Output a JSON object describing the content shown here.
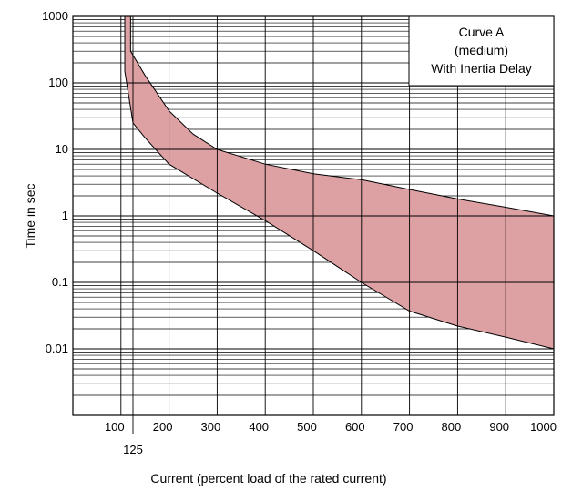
{
  "chart_data": {
    "type": "area",
    "xlabel": "Current (percent load of the rated current)",
    "ylabel": "Time in sec",
    "x_scale": "linear",
    "y_scale": "log",
    "xlim": [
      0,
      1000
    ],
    "ylim": [
      0.001,
      1000
    ],
    "x_ticks": [
      100,
      200,
      300,
      400,
      500,
      600,
      700,
      800,
      900,
      1000
    ],
    "x_extra_tick": 125,
    "y_ticks": [
      {
        "value": 0.01,
        "label": "0.01"
      },
      {
        "value": 0.1,
        "label": "0.1"
      },
      {
        "value": 1,
        "label": "1"
      },
      {
        "value": 10,
        "label": "10"
      },
      {
        "value": 100,
        "label": "100"
      },
      {
        "value": 1000,
        "label": "1000"
      }
    ],
    "grid": true,
    "legend": {
      "placement": "top-right",
      "lines": [
        "Curve A",
        "(medium)",
        "With Inertia Delay"
      ]
    },
    "fill_color": "#dda1a4",
    "line_color": "#000000",
    "upper_curve": [
      {
        "x": 120,
        "y": 1000
      },
      {
        "x": 120,
        "y": 300
      },
      {
        "x": 150,
        "y": 130
      },
      {
        "x": 200,
        "y": 38
      },
      {
        "x": 250,
        "y": 17
      },
      {
        "x": 300,
        "y": 10
      },
      {
        "x": 400,
        "y": 6
      },
      {
        "x": 500,
        "y": 4.3
      },
      {
        "x": 600,
        "y": 3.5
      },
      {
        "x": 700,
        "y": 2.5
      },
      {
        "x": 800,
        "y": 1.8
      },
      {
        "x": 900,
        "y": 1.35
      },
      {
        "x": 1000,
        "y": 1.0
      }
    ],
    "lower_curve": [
      {
        "x": 108,
        "y": 1000
      },
      {
        "x": 108,
        "y": 150
      },
      {
        "x": 125,
        "y": 25
      },
      {
        "x": 150,
        "y": 15
      },
      {
        "x": 200,
        "y": 6
      },
      {
        "x": 300,
        "y": 2.2
      },
      {
        "x": 400,
        "y": 0.85
      },
      {
        "x": 500,
        "y": 0.3
      },
      {
        "x": 600,
        "y": 0.1
      },
      {
        "x": 700,
        "y": 0.037
      },
      {
        "x": 800,
        "y": 0.022
      },
      {
        "x": 900,
        "y": 0.015
      },
      {
        "x": 1000,
        "y": 0.01
      }
    ]
  }
}
